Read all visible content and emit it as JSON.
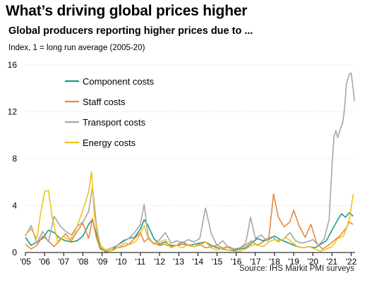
{
  "title": "What’s driving global prices higher",
  "subtitle": "Global producers reporting higher prices due to ...",
  "ylabel_note": "Index, 1 = long run average (2005-20)",
  "source": "Source: IHS Markit PMI surveys",
  "chart_data": {
    "type": "line",
    "title": "What’s driving global prices higher",
    "subtitle": "Global producers reporting higher prices due to ...",
    "ylabel": "Index, 1 = long run average (2005-20)",
    "ylim": [
      0,
      16
    ],
    "yticks": [
      0,
      4,
      8,
      12,
      16
    ],
    "xlim": [
      2005.0,
      2022.2
    ],
    "xticks": [
      {
        "v": 2005,
        "label": "'05"
      },
      {
        "v": 2006,
        "label": "'06"
      },
      {
        "v": 2007,
        "label": "'07"
      },
      {
        "v": 2008,
        "label": "'08"
      },
      {
        "v": 2009,
        "label": "'09"
      },
      {
        "v": 2010,
        "label": "'10"
      },
      {
        "v": 2011,
        "label": "'11"
      },
      {
        "v": 2012,
        "label": "'12"
      },
      {
        "v": 2013,
        "label": "'13"
      },
      {
        "v": 2014,
        "label": "'14"
      },
      {
        "v": 2015,
        "label": "'15"
      },
      {
        "v": 2016,
        "label": "'16"
      },
      {
        "v": 2017,
        "label": "'17"
      },
      {
        "v": 2018,
        "label": "'18"
      },
      {
        "v": 2019,
        "label": "'19"
      },
      {
        "v": 2020,
        "label": "'20"
      },
      {
        "v": 2021,
        "label": "'21"
      },
      {
        "v": 2022,
        "label": "'22"
      }
    ],
    "grid": "horizontal",
    "legend": "top-left",
    "series": [
      {
        "name": "Component costs",
        "color": "#1a9a8a",
        "points": [
          [
            2005.0,
            1.3
          ],
          [
            2005.3,
            0.6
          ],
          [
            2005.6,
            0.9
          ],
          [
            2005.9,
            1.2
          ],
          [
            2006.2,
            1.9
          ],
          [
            2006.5,
            1.7
          ],
          [
            2006.8,
            1.2
          ],
          [
            2007.1,
            1.0
          ],
          [
            2007.4,
            0.9
          ],
          [
            2007.7,
            1.0
          ],
          [
            2008.0,
            1.4
          ],
          [
            2008.3,
            2.4
          ],
          [
            2008.5,
            2.8
          ],
          [
            2008.7,
            1.6
          ],
          [
            2008.9,
            0.4
          ],
          [
            2009.2,
            0.05
          ],
          [
            2009.5,
            0.2
          ],
          [
            2009.8,
            0.6
          ],
          [
            2010.1,
            1.0
          ],
          [
            2010.4,
            1.2
          ],
          [
            2010.7,
            1.3
          ],
          [
            2011.0,
            2.0
          ],
          [
            2011.2,
            2.8
          ],
          [
            2011.4,
            2.3
          ],
          [
            2011.7,
            1.2
          ],
          [
            2012.0,
            0.7
          ],
          [
            2012.3,
            0.9
          ],
          [
            2012.6,
            0.6
          ],
          [
            2012.9,
            0.6
          ],
          [
            2013.2,
            0.9
          ],
          [
            2013.5,
            0.6
          ],
          [
            2013.8,
            0.7
          ],
          [
            2014.1,
            0.8
          ],
          [
            2014.4,
            0.9
          ],
          [
            2014.7,
            0.6
          ],
          [
            2015.0,
            0.4
          ],
          [
            2015.3,
            0.3
          ],
          [
            2015.6,
            0.2
          ],
          [
            2015.9,
            0.2
          ],
          [
            2016.2,
            0.3
          ],
          [
            2016.5,
            0.4
          ],
          [
            2016.8,
            0.8
          ],
          [
            2017.1,
            1.2
          ],
          [
            2017.4,
            1.0
          ],
          [
            2017.7,
            1.2
          ],
          [
            2018.0,
            1.4
          ],
          [
            2018.3,
            1.1
          ],
          [
            2018.6,
            0.9
          ],
          [
            2018.9,
            0.7
          ],
          [
            2019.2,
            0.5
          ],
          [
            2019.5,
            0.4
          ],
          [
            2019.8,
            0.5
          ],
          [
            2020.1,
            0.4
          ],
          [
            2020.4,
            0.7
          ],
          [
            2020.7,
            1.0
          ],
          [
            2021.0,
            1.9
          ],
          [
            2021.3,
            2.8
          ],
          [
            2021.5,
            3.3
          ],
          [
            2021.7,
            3.0
          ],
          [
            2021.9,
            3.4
          ],
          [
            2022.1,
            3.1
          ]
        ]
      },
      {
        "name": "Staff costs",
        "color": "#e8873a",
        "points": [
          [
            2005.0,
            0.7
          ],
          [
            2005.3,
            0.3
          ],
          [
            2005.6,
            0.6
          ],
          [
            2005.9,
            1.4
          ],
          [
            2006.2,
            1.0
          ],
          [
            2006.5,
            0.5
          ],
          [
            2006.8,
            1.1
          ],
          [
            2007.1,
            1.6
          ],
          [
            2007.4,
            1.0
          ],
          [
            2007.7,
            1.8
          ],
          [
            2008.0,
            2.5
          ],
          [
            2008.3,
            1.2
          ],
          [
            2008.5,
            2.9
          ],
          [
            2008.7,
            1.3
          ],
          [
            2008.9,
            0.3
          ],
          [
            2009.2,
            0.1
          ],
          [
            2009.5,
            0.2
          ],
          [
            2009.8,
            0.4
          ],
          [
            2010.1,
            0.5
          ],
          [
            2010.4,
            0.7
          ],
          [
            2010.7,
            1.2
          ],
          [
            2011.0,
            1.7
          ],
          [
            2011.2,
            0.9
          ],
          [
            2011.4,
            1.2
          ],
          [
            2011.7,
            0.8
          ],
          [
            2012.0,
            0.6
          ],
          [
            2012.3,
            0.7
          ],
          [
            2012.6,
            0.5
          ],
          [
            2012.9,
            0.6
          ],
          [
            2013.2,
            0.7
          ],
          [
            2013.5,
            0.6
          ],
          [
            2013.8,
            0.5
          ],
          [
            2014.1,
            0.7
          ],
          [
            2014.4,
            0.4
          ],
          [
            2014.7,
            0.5
          ],
          [
            2015.0,
            0.6
          ],
          [
            2015.3,
            0.4
          ],
          [
            2015.6,
            0.5
          ],
          [
            2015.9,
            0.3
          ],
          [
            2016.2,
            0.4
          ],
          [
            2016.5,
            0.6
          ],
          [
            2016.8,
            1.0
          ],
          [
            2017.1,
            0.6
          ],
          [
            2017.4,
            0.9
          ],
          [
            2017.7,
            1.2
          ],
          [
            2017.95,
            5.0
          ],
          [
            2018.2,
            3.0
          ],
          [
            2018.5,
            2.2
          ],
          [
            2018.8,
            2.6
          ],
          [
            2019.0,
            3.6
          ],
          [
            2019.3,
            2.2
          ],
          [
            2019.6,
            1.3
          ],
          [
            2019.9,
            2.4
          ],
          [
            2020.2,
            0.8
          ],
          [
            2020.5,
            0.3
          ],
          [
            2020.8,
            0.6
          ],
          [
            2021.1,
            1.0
          ],
          [
            2021.4,
            1.4
          ],
          [
            2021.7,
            2.0
          ],
          [
            2021.9,
            2.6
          ],
          [
            2022.1,
            2.4
          ]
        ]
      },
      {
        "name": "Transport costs",
        "color": "#a6a6a6",
        "points": [
          [
            2005.0,
            1.4
          ],
          [
            2005.3,
            2.3
          ],
          [
            2005.6,
            0.8
          ],
          [
            2005.9,
            1.8
          ],
          [
            2006.2,
            0.9
          ],
          [
            2006.5,
            3.1
          ],
          [
            2006.8,
            2.3
          ],
          [
            2007.1,
            1.8
          ],
          [
            2007.4,
            1.5
          ],
          [
            2007.7,
            2.2
          ],
          [
            2008.0,
            2.6
          ],
          [
            2008.3,
            3.5
          ],
          [
            2008.5,
            5.6
          ],
          [
            2008.7,
            2.4
          ],
          [
            2008.9,
            0.6
          ],
          [
            2009.2,
            0.2
          ],
          [
            2009.5,
            0.4
          ],
          [
            2009.8,
            0.6
          ],
          [
            2010.1,
            0.9
          ],
          [
            2010.4,
            1.2
          ],
          [
            2010.7,
            1.7
          ],
          [
            2011.0,
            2.4
          ],
          [
            2011.2,
            4.1
          ],
          [
            2011.4,
            1.4
          ],
          [
            2011.7,
            0.7
          ],
          [
            2012.0,
            1.1
          ],
          [
            2012.3,
            1.7
          ],
          [
            2012.6,
            0.8
          ],
          [
            2012.9,
            1.0
          ],
          [
            2013.2,
            0.8
          ],
          [
            2013.5,
            1.1
          ],
          [
            2013.8,
            0.9
          ],
          [
            2014.1,
            1.2
          ],
          [
            2014.4,
            3.8
          ],
          [
            2014.7,
            1.6
          ],
          [
            2015.0,
            0.6
          ],
          [
            2015.3,
            1.0
          ],
          [
            2015.6,
            0.4
          ],
          [
            2015.9,
            0.3
          ],
          [
            2016.2,
            0.4
          ],
          [
            2016.5,
            0.8
          ],
          [
            2016.75,
            3.0
          ],
          [
            2017.0,
            1.2
          ],
          [
            2017.3,
            1.5
          ],
          [
            2017.6,
            1.0
          ],
          [
            2017.9,
            1.3
          ],
          [
            2018.2,
            0.9
          ],
          [
            2018.5,
            1.2
          ],
          [
            2018.8,
            1.7
          ],
          [
            2019.1,
            1.0
          ],
          [
            2019.4,
            0.8
          ],
          [
            2019.7,
            0.9
          ],
          [
            2020.0,
            1.1
          ],
          [
            2020.3,
            0.6
          ],
          [
            2020.6,
            1.2
          ],
          [
            2020.85,
            2.8
          ],
          [
            2021.0,
            7.4
          ],
          [
            2021.1,
            9.8
          ],
          [
            2021.2,
            10.4
          ],
          [
            2021.3,
            9.8
          ],
          [
            2021.45,
            10.6
          ],
          [
            2021.55,
            11.0
          ],
          [
            2021.65,
            12.2
          ],
          [
            2021.75,
            14.4
          ],
          [
            2021.9,
            15.2
          ],
          [
            2022.0,
            15.3
          ],
          [
            2022.1,
            14.0
          ],
          [
            2022.17,
            12.9
          ]
        ]
      },
      {
        "name": "Energy costs",
        "color": "#f2c21b",
        "points": [
          [
            2005.0,
            1.5
          ],
          [
            2005.3,
            2.0
          ],
          [
            2005.6,
            1.2
          ],
          [
            2005.8,
            3.4
          ],
          [
            2006.0,
            5.2
          ],
          [
            2006.2,
            5.3
          ],
          [
            2006.4,
            3.0
          ],
          [
            2006.7,
            0.8
          ],
          [
            2007.0,
            1.4
          ],
          [
            2007.3,
            1.0
          ],
          [
            2007.6,
            1.8
          ],
          [
            2008.0,
            3.6
          ],
          [
            2008.3,
            5.2
          ],
          [
            2008.45,
            6.9
          ],
          [
            2008.6,
            3.2
          ],
          [
            2008.8,
            1.2
          ],
          [
            2009.0,
            0.4
          ],
          [
            2009.3,
            0.1
          ],
          [
            2009.6,
            0.2
          ],
          [
            2009.9,
            0.5
          ],
          [
            2010.2,
            0.8
          ],
          [
            2010.5,
            0.7
          ],
          [
            2010.8,
            1.0
          ],
          [
            2011.0,
            1.6
          ],
          [
            2011.2,
            2.3
          ],
          [
            2011.4,
            1.2
          ],
          [
            2011.7,
            0.7
          ],
          [
            2012.0,
            0.9
          ],
          [
            2012.3,
            1.1
          ],
          [
            2012.6,
            0.4
          ],
          [
            2012.9,
            0.6
          ],
          [
            2013.2,
            0.4
          ],
          [
            2013.5,
            0.7
          ],
          [
            2013.8,
            0.5
          ],
          [
            2014.1,
            0.6
          ],
          [
            2014.4,
            0.9
          ],
          [
            2014.7,
            0.4
          ],
          [
            2015.0,
            0.2
          ],
          [
            2015.3,
            0.4
          ],
          [
            2015.6,
            0.2
          ],
          [
            2015.9,
            0.1
          ],
          [
            2016.2,
            0.1
          ],
          [
            2016.5,
            0.3
          ],
          [
            2016.8,
            0.6
          ],
          [
            2017.1,
            0.7
          ],
          [
            2017.4,
            0.5
          ],
          [
            2017.7,
            0.9
          ],
          [
            2018.0,
            1.1
          ],
          [
            2018.3,
            1.0
          ],
          [
            2018.6,
            1.3
          ],
          [
            2018.9,
            0.9
          ],
          [
            2019.2,
            0.5
          ],
          [
            2019.5,
            0.4
          ],
          [
            2019.8,
            0.5
          ],
          [
            2020.1,
            0.3
          ],
          [
            2020.4,
            0.1
          ],
          [
            2020.7,
            0.3
          ],
          [
            2021.0,
            0.5
          ],
          [
            2021.3,
            1.2
          ],
          [
            2021.6,
            1.4
          ],
          [
            2021.8,
            2.3
          ],
          [
            2021.95,
            3.2
          ],
          [
            2022.05,
            4.4
          ],
          [
            2022.12,
            5.0
          ]
        ]
      }
    ]
  }
}
